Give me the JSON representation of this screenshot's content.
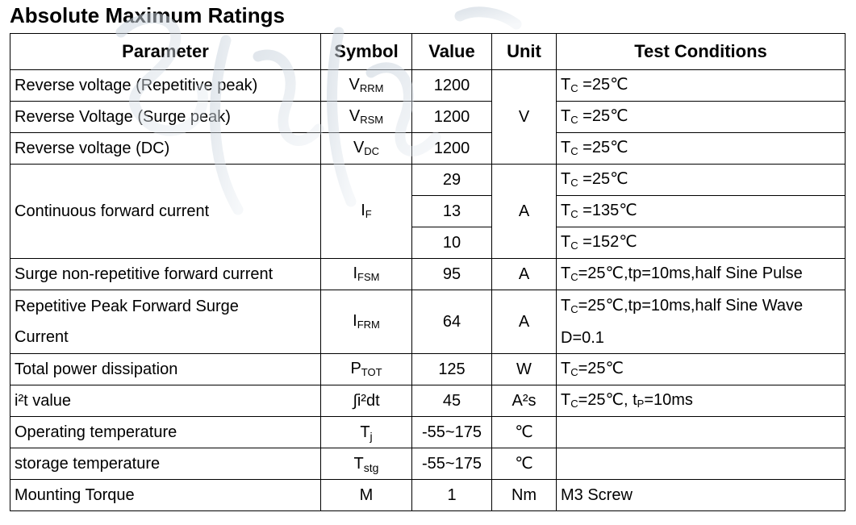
{
  "title": "Absolute Maximum Ratings",
  "headers": {
    "parameter": "Parameter",
    "symbol": "Symbol",
    "value": "Value",
    "unit": "Unit",
    "conditions": "Test Conditions"
  },
  "rows": {
    "rrm": {
      "parameter": "Reverse voltage (Repetitive peak)",
      "sym_main": "V",
      "sym_sub": "RRM",
      "value": "1200",
      "cond_pre": "T",
      "cond_sub": "C",
      "cond_post": " =25℃"
    },
    "rsm": {
      "parameter": "Reverse Voltage (Surge peak)",
      "sym_main": "V",
      "sym_sub": "RSM",
      "value": "1200",
      "cond_pre": "T",
      "cond_sub": "C",
      "cond_post": " =25℃"
    },
    "dc": {
      "parameter": "Reverse voltage (DC)",
      "sym_main": "V",
      "sym_sub": "DC",
      "value": "1200",
      "cond_pre": "T",
      "cond_sub": "C",
      "cond_post": " =25℃"
    },
    "voltage_unit": "V",
    "if": {
      "parameter": "Continuous forward current",
      "sym_main": "I",
      "sym_sub": "F",
      "unit": "A",
      "values": [
        "29",
        "13",
        "10"
      ],
      "cond_pre": [
        "T",
        "T",
        "T"
      ],
      "cond_sub": [
        "C",
        "C",
        "C"
      ],
      "cond_post": [
        " =25℃",
        " =135℃",
        " =152℃"
      ]
    },
    "fsm": {
      "parameter": "Surge non-repetitive forward current",
      "sym_main": "I",
      "sym_sub": "FSM",
      "value": "95",
      "unit": "A",
      "cond_pre": "T",
      "cond_sub": "C",
      "cond_post": "=25℃,tp=10ms,half Sine Pulse"
    },
    "frm": {
      "parameter_line1": "Repetitive Peak Forward Surge",
      "parameter_line2": "Current",
      "sym_main": "I",
      "sym_sub": "FRM",
      "value": "64",
      "unit": "A",
      "cond_pre": "T",
      "cond_sub": "C",
      "cond_post": "=25℃,tp=10ms,half Sine Wave",
      "cond_line2": "D=0.1"
    },
    "tot": {
      "parameter": "Total power dissipation",
      "sym_main": "P",
      "sym_sub": "TOT",
      "value": "125",
      "unit": "W",
      "cond_pre": "T",
      "cond_sub": "C",
      "cond_post": "=25℃"
    },
    "i2t": {
      "parameter": "i²t value",
      "symbol": "∫i²dt",
      "value": "45",
      "unit": "A²s",
      "cond_pre": "T",
      "cond_sub": "C",
      "cond_mid": "=25℃, t",
      "cond_sub2": "P",
      "cond_post": "=10ms"
    },
    "tj": {
      "parameter": "Operating temperature",
      "sym_main": "T",
      "sym_sub": "j",
      "value": "-55~175",
      "unit": "℃",
      "cond": ""
    },
    "tstg": {
      "parameter": "storage temperature",
      "sym_main": "T",
      "sym_sub": "stg",
      "value": "-55~175",
      "unit": "℃",
      "cond": ""
    },
    "torque": {
      "parameter": "Mounting Torque",
      "symbol": "M",
      "value": "1",
      "unit": "Nm",
      "cond": "M3 Screw"
    }
  }
}
